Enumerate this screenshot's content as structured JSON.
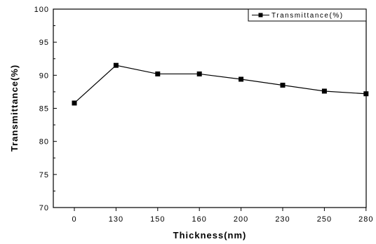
{
  "chart_data": {
    "type": "line",
    "title": "",
    "xlabel": "Thickness(nm)",
    "ylabel": "Transmittance(%)",
    "categories": [
      "0",
      "130",
      "150",
      "160",
      "200",
      "230",
      "250",
      "280"
    ],
    "series": [
      {
        "name": "Transmittance(%)",
        "values": [
          85.8,
          91.5,
          90.2,
          90.2,
          89.4,
          88.5,
          87.6,
          87.2
        ],
        "color": "#000000",
        "marker": "square"
      }
    ],
    "ylim": [
      70,
      100
    ],
    "yticks": [
      "70",
      "75",
      "80",
      "85",
      "90",
      "95",
      "100"
    ],
    "grid": false,
    "legend_position": "top-right"
  }
}
